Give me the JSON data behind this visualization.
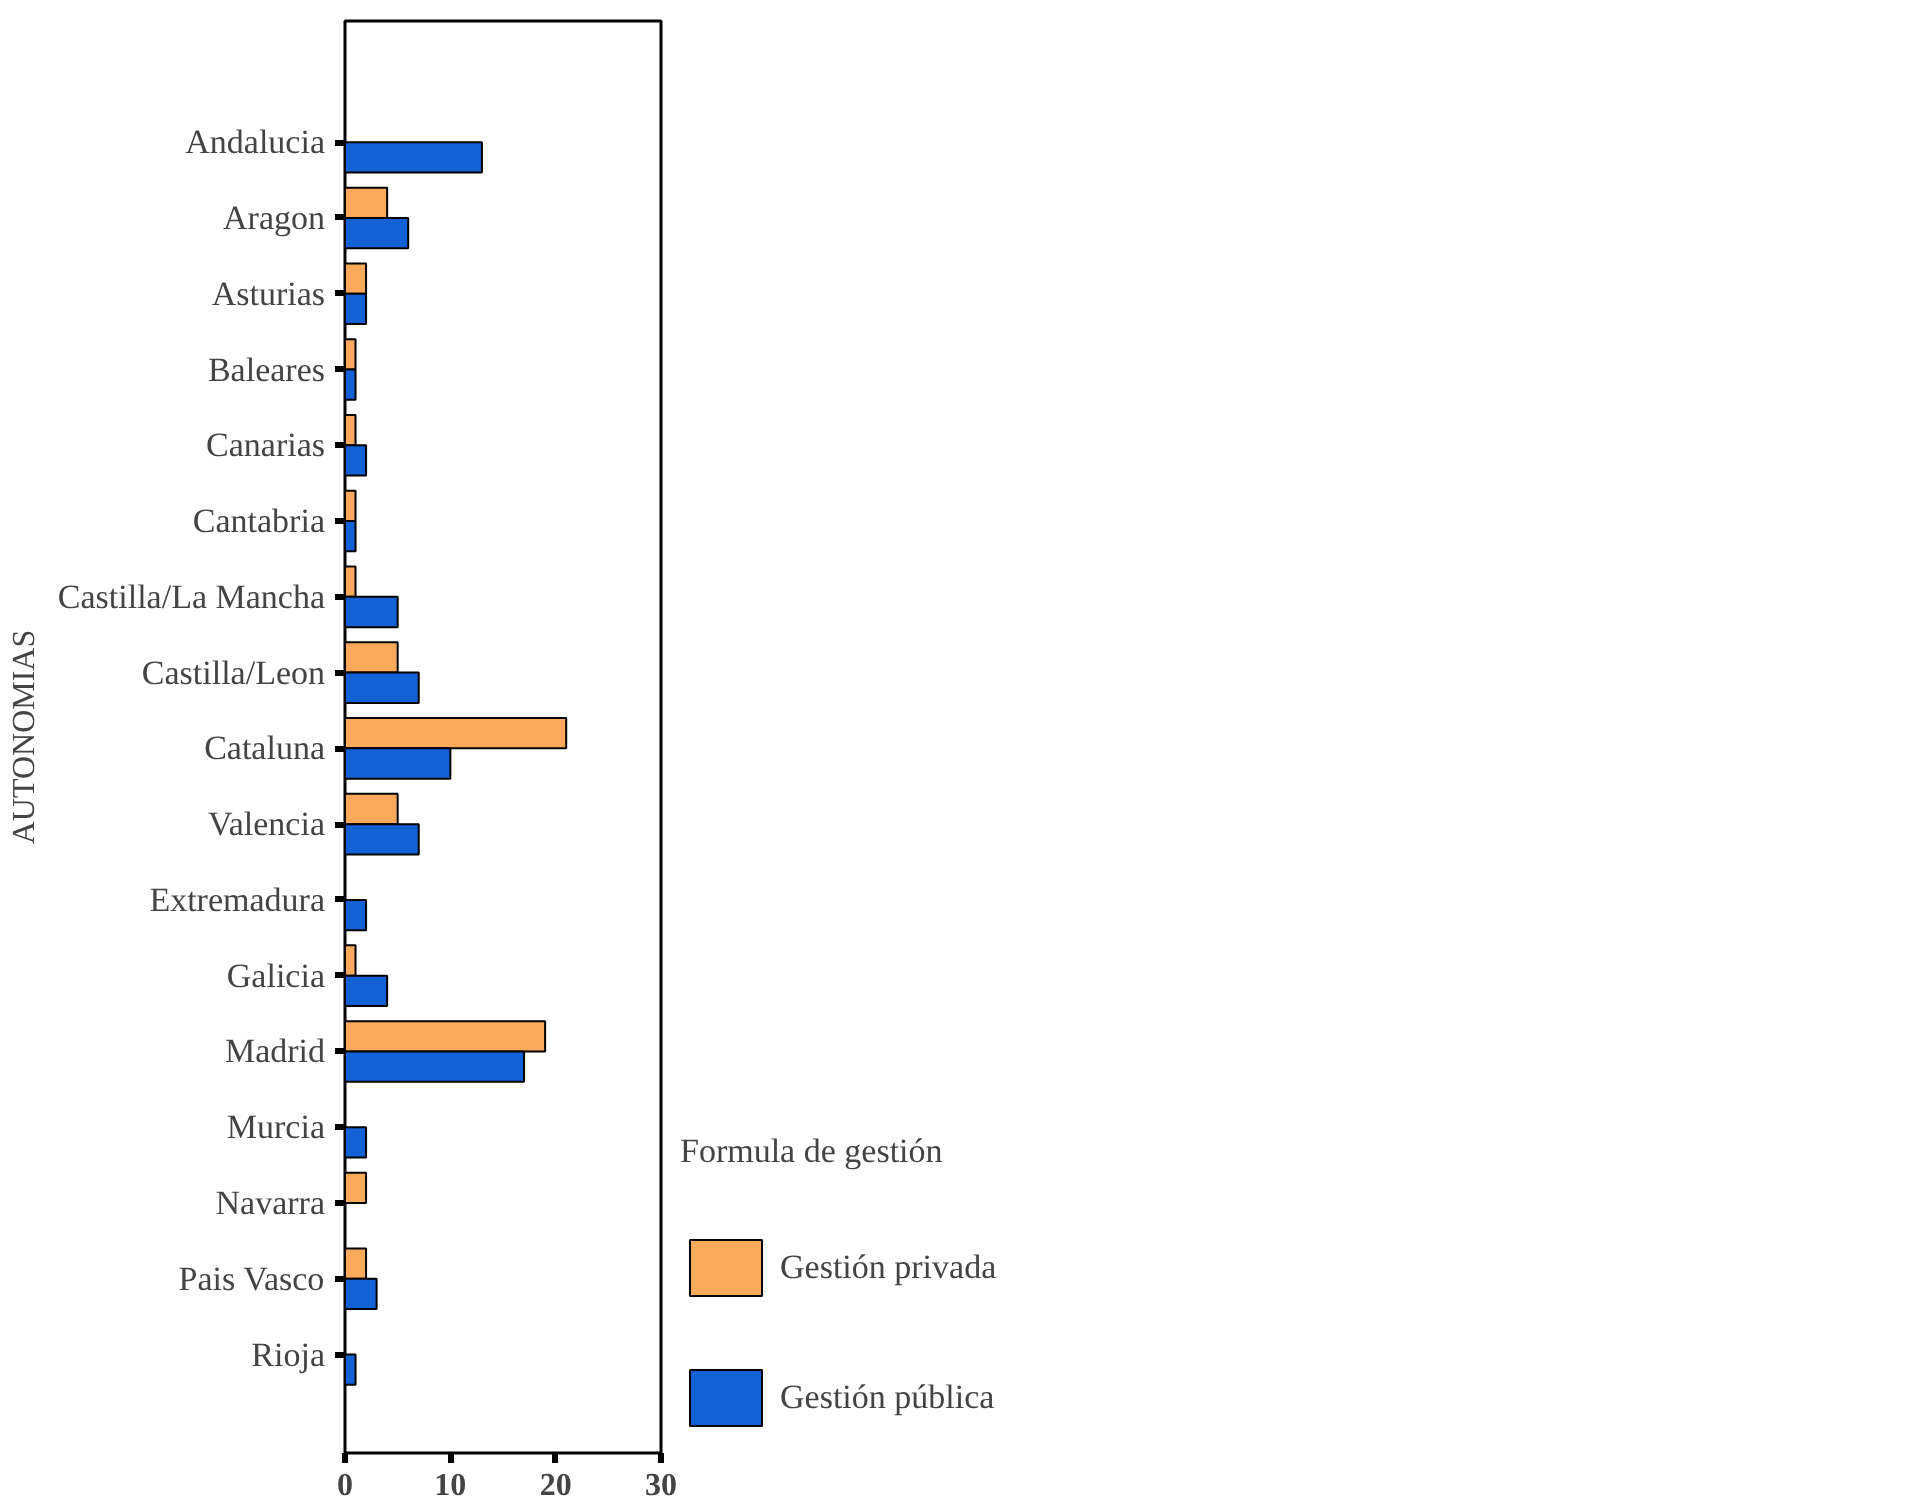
{
  "chart_data": {
    "type": "bar",
    "orientation": "horizontal",
    "ylabel": "AUTONOMIAS",
    "legend_title": "Formula de gestión",
    "legend": "right",
    "categories": [
      "Andalucia",
      "Aragon",
      "Asturias",
      "Baleares",
      "Canarias",
      "Cantabria",
      "Castilla/La Mancha",
      "Castilla/Leon",
      "Cataluna",
      "Valencia",
      "Extremadura",
      "Galicia",
      "Madrid",
      "Murcia",
      "Navarra",
      "Pais Vasco",
      "Rioja"
    ],
    "series": [
      {
        "name": "Gestión privada",
        "color": "#fbaa5c",
        "values": [
          null,
          4,
          2,
          1,
          1,
          1,
          1,
          5,
          21,
          5,
          null,
          1,
          19,
          null,
          2,
          2,
          null
        ]
      },
      {
        "name": "Gestión pública",
        "color": "#1262d6",
        "values": [
          13,
          6,
          2,
          1,
          2,
          1,
          5,
          7,
          10,
          7,
          2,
          4,
          17,
          2,
          null,
          3,
          1
        ]
      }
    ],
    "xlim": [
      0,
      30
    ],
    "xticks": [
      0,
      10,
      20,
      30
    ],
    "grid": false
  }
}
